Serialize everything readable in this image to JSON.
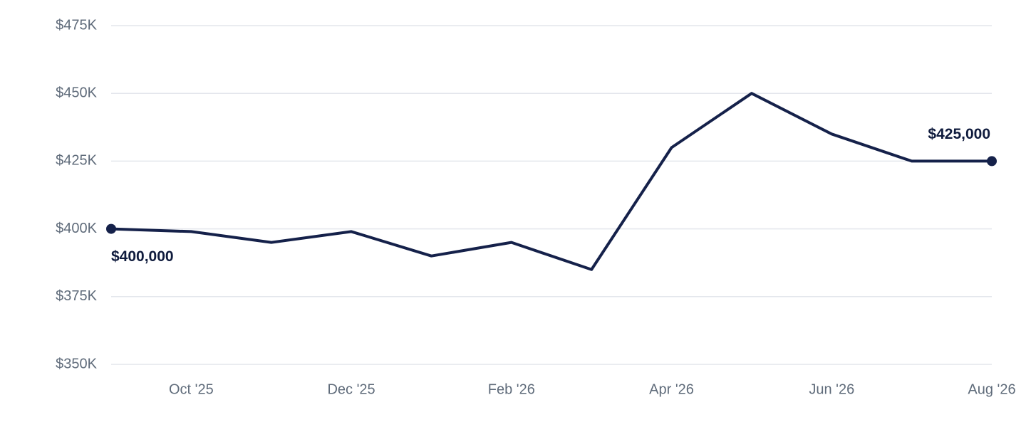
{
  "chart_data": {
    "type": "line",
    "categories": [
      null,
      "Oct '25",
      null,
      "Dec '25",
      null,
      "Feb '26",
      null,
      "Apr '26",
      null,
      "Jun '26",
      null,
      "Aug '26"
    ],
    "values": [
      400000,
      399000,
      395000,
      399000,
      390000,
      395000,
      385000,
      430000,
      450000,
      435000,
      425000,
      425000
    ],
    "value_labels": [
      "$400,000",
      null,
      null,
      null,
      null,
      null,
      null,
      null,
      null,
      null,
      null,
      "$425,000"
    ],
    "color": "#15214a",
    "ylim": [
      350000,
      475000
    ],
    "yticks": [
      {
        "value": 350000,
        "label": "$350K"
      },
      {
        "value": 375000,
        "label": "$375K"
      },
      {
        "value": 400000,
        "label": "$400K"
      },
      {
        "value": 425000,
        "label": "$425K"
      },
      {
        "value": 450000,
        "label": "$450K"
      },
      {
        "value": 475000,
        "label": "$475K"
      }
    ],
    "grid": true
  }
}
